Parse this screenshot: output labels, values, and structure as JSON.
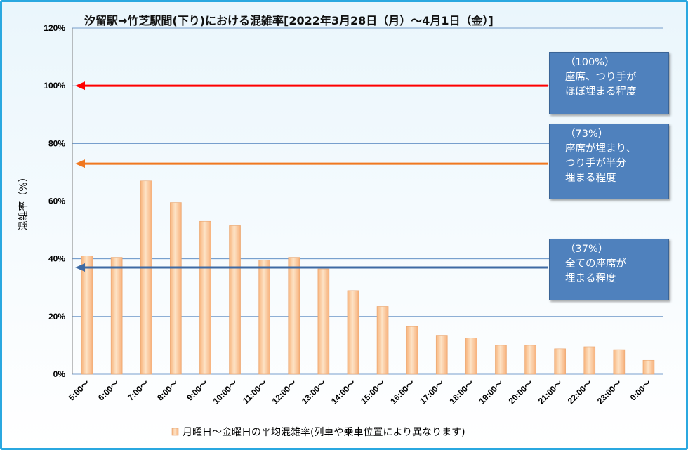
{
  "chart_data": {
    "type": "bar",
    "title": "汐留駅→竹芝駅間(下り)における混雑率[2022年3月28日（月）～4月1日（金）]",
    "ylabel": "混雑率（%）",
    "xlabel": "",
    "ylim": [
      0,
      120
    ],
    "yticks": [
      "0%",
      "20%",
      "40%",
      "60%",
      "80%",
      "100%",
      "120%"
    ],
    "categories": [
      "5:00～",
      "6:00～",
      "7:00～",
      "8:00～",
      "9:00～",
      "10:00～",
      "11:00～",
      "12:00～",
      "13:00～",
      "14:00～",
      "15:00～",
      "16:00～",
      "17:00～",
      "18:00～",
      "19:00～",
      "20:00～",
      "21:00～",
      "22:00～",
      "23:00～",
      "0:00～"
    ],
    "series": [
      {
        "name": "月曜日～金曜日の平均混雑率(列車や乗車位置により異なります)",
        "values": [
          41,
          40.5,
          67,
          59.5,
          53,
          51.5,
          39.5,
          40.5,
          36.5,
          29,
          23.5,
          16.5,
          13.5,
          12.5,
          10,
          10,
          8.8,
          9.5,
          8.5,
          4.8
        ]
      }
    ],
    "grid": true,
    "legend_position": "bottom",
    "reference_lines": [
      {
        "value": 100,
        "color": "#ff0000",
        "label_lines": [
          "（100%）",
          "座席、つり手が",
          "ほぼ埋まる程度"
        ]
      },
      {
        "value": 73,
        "color": "#f07820",
        "label_lines": [
          "（73%）",
          "座席が埋まり、",
          "つり手が半分",
          "埋まる程度"
        ]
      },
      {
        "value": 37,
        "color": "#3e6aa4",
        "label_lines": [
          "（37%）",
          "全ての座席が",
          "埋まる程度"
        ]
      }
    ],
    "bar_color": "#fbc896"
  }
}
